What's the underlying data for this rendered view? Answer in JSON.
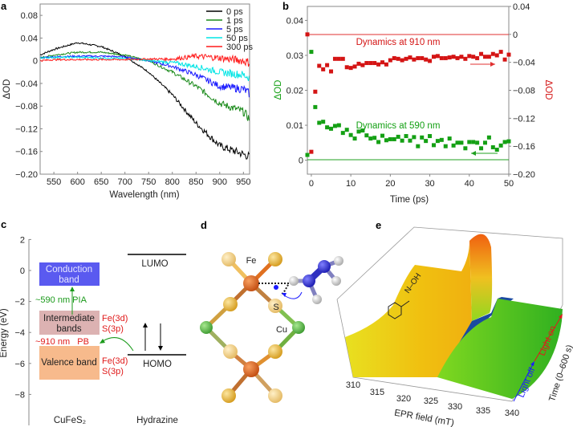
{
  "panels": {
    "a": "a",
    "b": "b",
    "c": "c",
    "d": "d",
    "e": "e"
  },
  "chart_data": [
    {
      "id": "a",
      "type": "line",
      "xlabel": "Wavelength (nm)",
      "ylabel": "ΔOD",
      "xlim": [
        521,
        963
      ],
      "ylim": [
        -0.2,
        0.1
      ],
      "xticks": [
        "550",
        "600",
        "650",
        "700",
        "750",
        "800",
        "850",
        "900",
        "950"
      ],
      "yticks": [
        "0.08",
        "0.04",
        "0",
        "−0.04",
        "−0.08",
        "−0.12",
        "−0.16",
        "−0.20"
      ],
      "legend_position": "top-right",
      "x": [
        520,
        550,
        600,
        650,
        700,
        750,
        800,
        850,
        900,
        950,
        980
      ],
      "series": [
        {
          "name": "0 ps",
          "color": "#000000",
          "values": [
            0.01,
            0.02,
            0.032,
            0.025,
            0.008,
            -0.02,
            -0.06,
            -0.11,
            -0.15,
            -0.165,
            -0.175
          ]
        },
        {
          "name": "1 ps",
          "color": "#1a8a1a",
          "values": [
            0.005,
            0.01,
            0.015,
            0.015,
            0.01,
            0.0,
            -0.02,
            -0.045,
            -0.075,
            -0.09,
            -0.12
          ]
        },
        {
          "name": "5 ps",
          "color": "#1a1aff",
          "values": [
            0.005,
            0.007,
            0.008,
            0.008,
            0.007,
            0.0,
            -0.01,
            -0.025,
            -0.045,
            -0.05,
            -0.07
          ]
        },
        {
          "name": "50 ps",
          "color": "#00e5e5",
          "values": [
            0.005,
            0.006,
            0.006,
            0.005,
            0.004,
            0.0,
            -0.003,
            -0.01,
            -0.02,
            -0.025,
            -0.036
          ]
        },
        {
          "name": "300 ps",
          "color": "#ff1a1a",
          "values": [
            0.0,
            0.002,
            0.002,
            0.002,
            0.002,
            0.003,
            0.003,
            0.008,
            0.005,
            0.0,
            -0.008
          ]
        }
      ]
    },
    {
      "id": "b",
      "type": "scatter",
      "xlabel": "Time (ps)",
      "ylabel_left": "ΔOD",
      "ylabel_right": "ΔOD",
      "xlim": [
        -1,
        50
      ],
      "ylim_left": [
        -0.004,
        0.044
      ],
      "ylim_right": [
        -0.2,
        0.04
      ],
      "xticks": [
        "0",
        "10",
        "20",
        "30",
        "40",
        "50"
      ],
      "yticks_left": [
        "0",
        "0.01",
        "0.02",
        "0.03",
        "0.04"
      ],
      "yticks_right": [
        "0.04",
        "0",
        "−0.04",
        "−0.08",
        "−0.12",
        "−0.16",
        "−0.20"
      ],
      "x": [
        -1,
        0,
        1,
        2,
        3,
        4,
        5,
        6,
        7,
        8,
        9,
        10,
        11,
        12,
        13,
        14,
        15,
        16,
        17,
        18,
        19,
        20,
        21,
        22,
        23,
        24,
        25,
        26,
        27,
        28,
        29,
        30,
        31,
        32,
        33,
        34,
        35,
        36,
        37,
        38,
        39,
        40,
        41,
        42,
        43,
        44,
        45,
        46,
        47,
        48,
        49,
        50
      ],
      "series": [
        {
          "name": "Dynamics at 910 nm",
          "axis": "right",
          "color": "#d41414",
          "annotation": "Dynamics at 910 nm",
          "values": [
            0,
            -0.168,
            -0.082,
            -0.045,
            -0.05,
            -0.044,
            -0.053,
            -0.035,
            -0.035,
            -0.035,
            -0.047,
            -0.048,
            -0.046,
            -0.042,
            -0.044,
            -0.041,
            -0.041,
            -0.041,
            -0.043,
            -0.04,
            -0.043,
            -0.037,
            -0.034,
            -0.035,
            -0.037,
            -0.035,
            -0.033,
            -0.036,
            -0.034,
            -0.034,
            -0.036,
            -0.038,
            -0.032,
            -0.031,
            -0.034,
            -0.034,
            -0.033,
            -0.032,
            -0.034,
            -0.032,
            -0.035,
            -0.031,
            -0.032,
            -0.034,
            -0.028,
            -0.032,
            -0.032,
            -0.028,
            -0.03,
            -0.025,
            -0.036,
            -0.029
          ]
        },
        {
          "name": "Dynamics at 590 nm",
          "axis": "left",
          "color": "#14a014",
          "annotation": "Dynamics at 590 nm",
          "values": [
            0.0015,
            0.031,
            0.0152,
            0.0107,
            0.011,
            0.0094,
            0.009,
            0.0098,
            0.01,
            0.0078,
            0.0087,
            0.0072,
            0.0062,
            0.0082,
            0.0085,
            0.0071,
            0.0062,
            0.0064,
            0.0052,
            0.007,
            0.0057,
            0.006,
            0.006,
            0.0067,
            0.0056,
            0.0069,
            0.0056,
            0.0066,
            0.004,
            0.0065,
            0.0055,
            0.0069,
            0.0043,
            0.0055,
            0.0058,
            0.004,
            0.0062,
            0.0042,
            0.005,
            0.005,
            0.0034,
            0.0052,
            0.0052,
            0.005,
            0.0034,
            0.005,
            0.0065,
            0.0037,
            0.003,
            0.0042,
            0.0052,
            0.0054
          ]
        }
      ]
    }
  ],
  "panel_c": {
    "ylabel": "Energy (eV)",
    "yticks": [
      "2",
      "0",
      "−2",
      "−4",
      "−6",
      "−8"
    ],
    "conduction_band": [
      "Conduction",
      "band"
    ],
    "intermediate_bands": [
      "Intermediate",
      "bands"
    ],
    "valence_band": "Valence band",
    "orbital_top": [
      "Fe(3d)",
      "S(3p)"
    ],
    "orbital_bottom": [
      "Fe(3d)",
      "S(3p)"
    ],
    "pia": "~590 nm  PIA",
    "pb": "~910 nm   PB",
    "lumo": "LUMO",
    "homo": "HOMO",
    "x_left": "CuFeS₂",
    "x_right": "Hydrazine",
    "colors": {
      "conduction": "#5a5af0",
      "intermediate": "#dcb2b2",
      "valence": "#f7ba8c",
      "arrow": "#1a9a1a",
      "annot": "#e01a1a"
    }
  },
  "panel_d": {
    "fe": "Fe",
    "cu": "Cu",
    "s": "S"
  },
  "panel_e": {
    "xlabel": "EPR field (mT)",
    "xticks": [
      "310",
      "315",
      "320",
      "325",
      "330",
      "335",
      "340"
    ],
    "time_label": "Time (0–600 s)",
    "light_off": "Light off",
    "light_on": "Light on",
    "molecule": "N–OH"
  }
}
